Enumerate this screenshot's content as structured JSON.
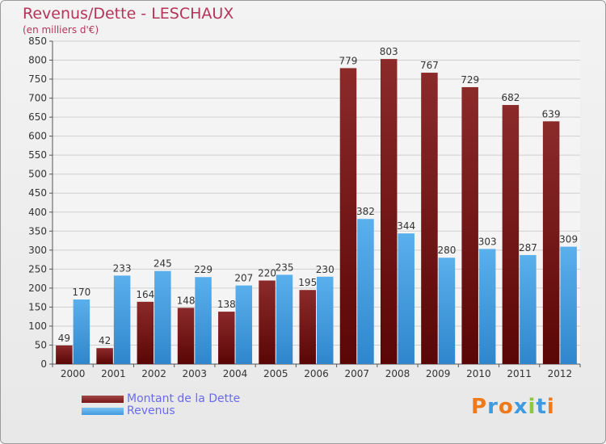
{
  "header": {
    "title": "Revenus/Dette - LESCHAUX",
    "subtitle": "(en milliers d'€)"
  },
  "legend": {
    "items": [
      {
        "label": "Montant de la Dette",
        "color": "#7a1414"
      },
      {
        "label": "Revenus",
        "color": "#3f9be0"
      }
    ]
  },
  "logo": {
    "text": "Proxiti",
    "colors": [
      "#f07a1a",
      "#3f9be0",
      "#f07a1a",
      "#3f9be0",
      "#8dc63f",
      "#3f9be0",
      "#f07a1a"
    ]
  },
  "chart_data": {
    "type": "bar",
    "title": "Revenus/Dette - LESCHAUX",
    "ylabel": "(en milliers d'€)",
    "xlabel": "",
    "categories": [
      "2000",
      "2001",
      "2002",
      "2003",
      "2004",
      "2005",
      "2006",
      "2007",
      "2008",
      "2009",
      "2010",
      "2011",
      "2012"
    ],
    "series": [
      {
        "name": "Montant de la Dette",
        "color": "#7a1414",
        "values": [
          49,
          42,
          164,
          148,
          138,
          220,
          195,
          779,
          803,
          767,
          729,
          682,
          639
        ]
      },
      {
        "name": "Revenus",
        "color": "#3f9be0",
        "values": [
          170,
          233,
          245,
          229,
          207,
          235,
          230,
          382,
          344,
          280,
          303,
          287,
          309
        ]
      }
    ],
    "ylim": [
      0,
      850
    ],
    "yticks": [
      0,
      50,
      100,
      150,
      200,
      250,
      300,
      350,
      400,
      450,
      500,
      550,
      600,
      650,
      700,
      750,
      800,
      850
    ],
    "grid": true,
    "legend_position": "bottom-left"
  }
}
